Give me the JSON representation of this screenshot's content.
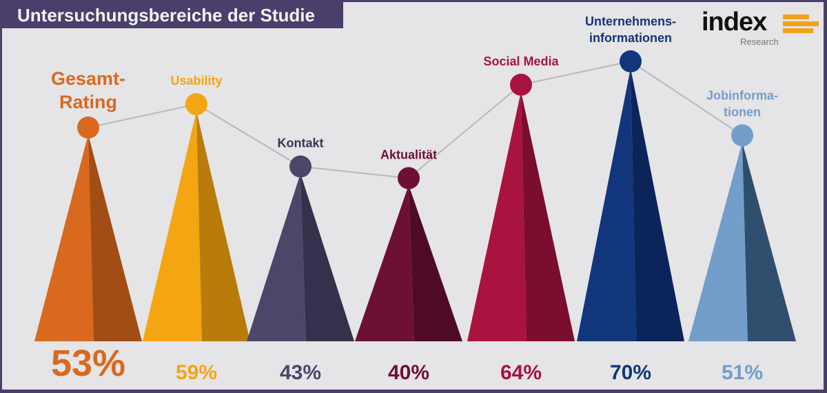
{
  "title": "Untersuchungsbereiche der Studie",
  "logo": {
    "word": "index",
    "sub": "Research",
    "accent": "#f0a31a"
  },
  "chart_data": {
    "type": "line",
    "title": "Untersuchungsbereiche der Studie",
    "categories": [
      "Gesamt-Rating",
      "Usability",
      "Kontakt",
      "Aktualität",
      "Social Media",
      "Unternehmens-informationen",
      "Jobinformationen"
    ],
    "label_lines": [
      [
        "Gesamt-",
        "Rating"
      ],
      [
        "Usability"
      ],
      [
        "Kontakt"
      ],
      [
        "Aktualität"
      ],
      [
        "Social Media"
      ],
      [
        "Unternehmens-",
        "informationen"
      ],
      [
        "Jobinforma-",
        "tionen"
      ]
    ],
    "values": [
      53,
      59,
      43,
      40,
      64,
      70,
      51
    ],
    "value_labels": [
      "53%",
      "59%",
      "43%",
      "40%",
      "64%",
      "70%",
      "51%"
    ],
    "colors": [
      {
        "light": "#d9691e",
        "dark": "#a24d15",
        "circle": "#d9691e"
      },
      {
        "light": "#f3a512",
        "dark": "#b97c0b",
        "circle": "#f3a512"
      },
      {
        "light": "#4d4668",
        "dark": "#35304b",
        "circle": "#4d4668"
      },
      {
        "light": "#6d1035",
        "dark": "#4e0a26",
        "circle": "#6d1035"
      },
      {
        "light": "#a9133f",
        "dark": "#7b0d2e",
        "circle": "#a9133f"
      },
      {
        "light": "#11367c",
        "dark": "#0b255b",
        "circle": "#11367c"
      },
      {
        "light": "#729ec9",
        "dark": "#2f4e6d",
        "circle": "#729ec9"
      }
    ],
    "connector_color": "#b8b8b8"
  }
}
